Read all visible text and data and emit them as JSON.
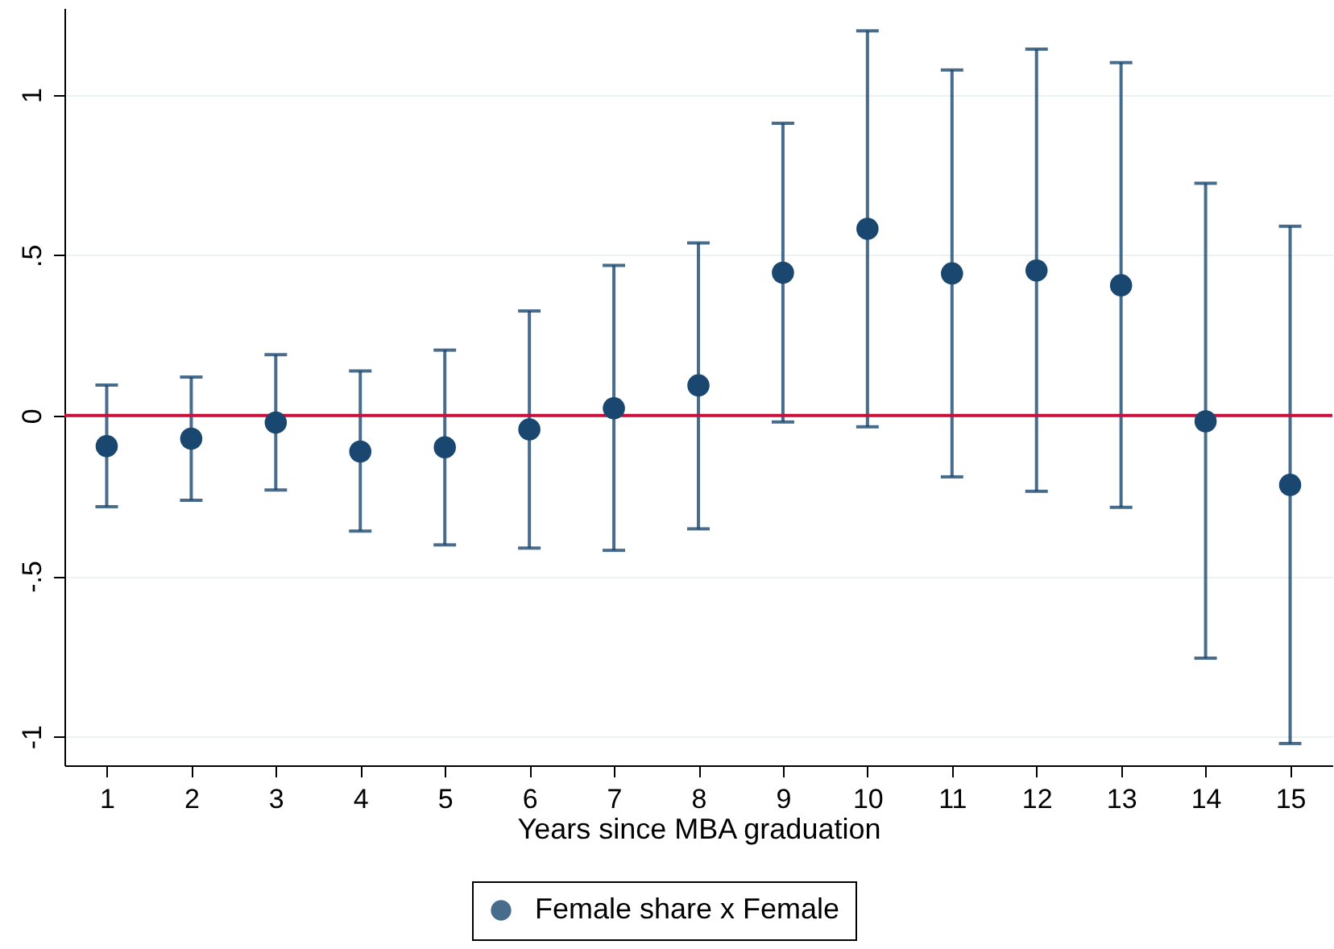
{
  "chart_data": {
    "type": "scatter",
    "xlabel": "Years since MBA graduation",
    "x": [
      1,
      2,
      3,
      4,
      5,
      6,
      7,
      8,
      9,
      10,
      11,
      12,
      13,
      14,
      15
    ],
    "series": [
      {
        "name": "Female share x Female",
        "color": "#1a476f",
        "values": [
          -0.095,
          -0.072,
          -0.022,
          -0.112,
          -0.099,
          -0.043,
          0.023,
          0.094,
          0.445,
          0.582,
          0.443,
          0.452,
          0.406,
          -0.018,
          -0.216
        ],
        "errors": [
          [
            -0.284,
            0.095
          ],
          [
            -0.264,
            0.12
          ],
          [
            -0.232,
            0.19
          ],
          [
            -0.36,
            0.139
          ],
          [
            -0.403,
            0.204
          ],
          [
            -0.413,
            0.326
          ],
          [
            -0.42,
            0.468
          ],
          [
            -0.353,
            0.538
          ],
          [
            -0.02,
            0.911
          ],
          [
            -0.035,
            1.199
          ],
          [
            -0.191,
            1.077
          ],
          [
            -0.236,
            1.142
          ],
          [
            -0.286,
            1.1
          ],
          [
            -0.756,
            0.724
          ],
          [
            -1.022,
            0.59
          ]
        ]
      }
    ],
    "xlim": [
      0.5,
      15.5
    ],
    "xticks": [
      1,
      2,
      3,
      4,
      5,
      6,
      7,
      8,
      9,
      10,
      11,
      12,
      13,
      14,
      15
    ],
    "ylim": [
      -1.09,
      1.27
    ],
    "yticks": [
      {
        "value": -1,
        "label": "-1"
      },
      {
        "value": -0.5,
        "label": "-.5"
      },
      0,
      {
        "value": 0.5,
        "label": ".5"
      },
      1
    ],
    "ref_lines": [
      {
        "axis": "y",
        "value": 0,
        "color": "#c8103c"
      }
    ],
    "grid": "y",
    "legend": "bottom",
    "marker": "circle"
  }
}
